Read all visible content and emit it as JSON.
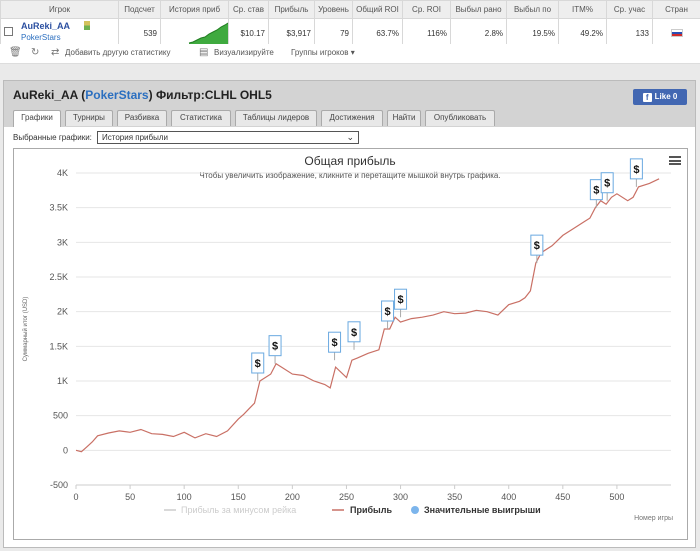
{
  "table": {
    "headers": [
      "Игрок",
      "Подсчет",
      "История приб",
      "Ср. став",
      "Прибыль",
      "Уровень",
      "Общий ROI",
      "Ср. ROI",
      "Выбыл рано",
      "Выбыл по",
      "ITM%",
      "Ср. учас",
      "Стран"
    ],
    "row": {
      "player_name": "AuReki_AA",
      "site": "PokerStars",
      "count": "539",
      "avg_stake": "$10.17",
      "profit": "$3,917",
      "level": "79",
      "total_roi": "63.7%",
      "avg_roi": "116%",
      "early": "2.8%",
      "late": "19.5%",
      "itm": "49.2%",
      "avg_entrants": "133"
    }
  },
  "toolbar": {
    "add_stats": "Добавить другую статистику",
    "visualize": "Визуализируйте",
    "player_groups": "Группы игроков"
  },
  "panel": {
    "title_name": "AuReki_AA (",
    "title_site": "PokerStars",
    "title_filter": ") Фильтр:CLHL OHL5",
    "like_label": "Like 0",
    "tabs": [
      "Графики",
      "Турниры",
      "Разбивка",
      "Статистика",
      "Таблицы лидеров",
      "Достижения",
      "Найти",
      "Опубликовать"
    ],
    "select_label": "Выбранные графики:",
    "select_value": "История прибыли"
  },
  "colors": {
    "line": "#c97065",
    "legend_gray": "#cccccc",
    "legend_dot": "#7cb5ec"
  },
  "chart_data": {
    "type": "line",
    "title": "Общая прибыль",
    "subtitle": "Чтобы увеличить изображение, кликните и перетащите мышкой внутрь графика.",
    "ylabel": "Суммарный итог (USD)",
    "xlabel": "Номер игры",
    "ylim": [
      -500,
      4000
    ],
    "xlim": [
      0,
      550
    ],
    "yticks": [
      "-500",
      "0",
      "500",
      "1K",
      "1.5K",
      "2K",
      "2.5K",
      "3K",
      "3.5K",
      "4K"
    ],
    "ytick_values": [
      -500,
      0,
      500,
      1000,
      1500,
      2000,
      2500,
      3000,
      3500,
      4000
    ],
    "xticks": [
      0,
      50,
      100,
      150,
      200,
      250,
      300,
      350,
      400,
      450,
      500
    ],
    "legend": [
      "Прибыль за минусом рейка",
      "Прибыль",
      "Значительные выигрыши"
    ],
    "series": [
      {
        "name": "Прибыль",
        "x": [
          0,
          5,
          10,
          15,
          20,
          30,
          40,
          50,
          60,
          70,
          80,
          90,
          100,
          110,
          120,
          130,
          140,
          150,
          155,
          160,
          165,
          170,
          180,
          185,
          190,
          200,
          210,
          220,
          230,
          235,
          240,
          250,
          255,
          260,
          270,
          280,
          285,
          290,
          295,
          300,
          310,
          320,
          330,
          340,
          350,
          360,
          370,
          380,
          390,
          400,
          410,
          415,
          420,
          425,
          430,
          440,
          450,
          460,
          470,
          475,
          480,
          485,
          490,
          495,
          500,
          510,
          515,
          520,
          530,
          539
        ],
        "y": [
          0,
          -20,
          50,
          120,
          210,
          250,
          280,
          260,
          300,
          240,
          230,
          200,
          260,
          180,
          240,
          200,
          280,
          450,
          520,
          600,
          680,
          1000,
          1100,
          1250,
          1200,
          1100,
          1080,
          1000,
          950,
          900,
          1200,
          1050,
          1300,
          1330,
          1400,
          1450,
          1750,
          1750,
          1920,
          1850,
          1900,
          1920,
          1950,
          2000,
          1970,
          1980,
          2020,
          2000,
          1950,
          2100,
          2150,
          2200,
          2300,
          2700,
          2850,
          2950,
          3100,
          3200,
          3300,
          3350,
          3500,
          3600,
          3550,
          3650,
          3700,
          3600,
          3650,
          3800,
          3850,
          3917
        ]
      }
    ],
    "big_wins": [
      {
        "x": 168,
        "y": 1000
      },
      {
        "x": 184,
        "y": 1250
      },
      {
        "x": 239,
        "y": 1300
      },
      {
        "x": 257,
        "y": 1450
      },
      {
        "x": 288,
        "y": 1750
      },
      {
        "x": 300,
        "y": 1920
      },
      {
        "x": 426,
        "y": 2700
      },
      {
        "x": 481,
        "y": 3500
      },
      {
        "x": 491,
        "y": 3600
      },
      {
        "x": 518,
        "y": 3800
      }
    ]
  }
}
